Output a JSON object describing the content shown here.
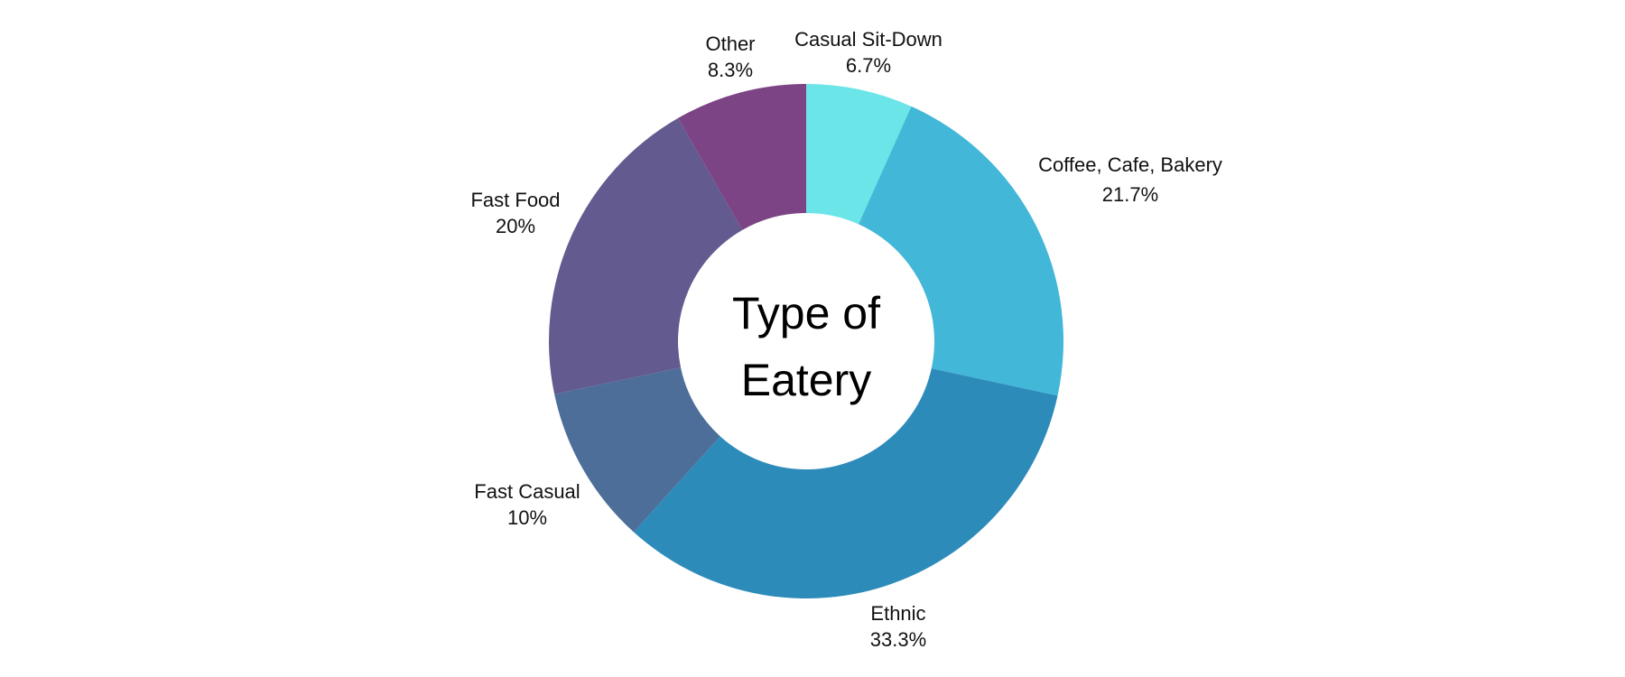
{
  "chart_data": {
    "type": "pie",
    "title_lines": [
      "Type of",
      "Eatery"
    ],
    "slices": [
      {
        "label": "Casual Sit-Down",
        "value": 6.7,
        "display": "6.7%",
        "color": "#6BE5E8"
      },
      {
        "label": "Coffee, Cafe, Bakery",
        "value": 21.7,
        "display": "21.7%",
        "color": "#42B7D8"
      },
      {
        "label": "Ethnic",
        "value": 33.3,
        "display": "33.3%",
        "color": "#2D8BBA"
      },
      {
        "label": "Fast Casual",
        "value": 10,
        "display": "10%",
        "color": "#4C6E99"
      },
      {
        "label": "Fast Food",
        "value": 20,
        "display": "20%",
        "color": "#635A8F"
      },
      {
        "label": "Other",
        "value": 8.3,
        "display": "8.3%",
        "color": "#7C4485"
      }
    ]
  }
}
